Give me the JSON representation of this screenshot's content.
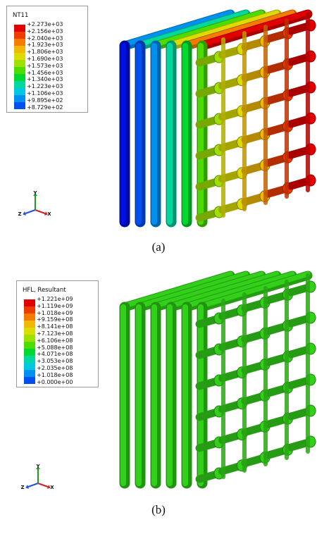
{
  "panel_a": {
    "legend": {
      "title": "NT11",
      "labels": [
        "+2.273e+03",
        "+2.156e+03",
        "+2.040e+03",
        "+1.923e+03",
        "+1.806e+03",
        "+1.690e+03",
        "+1.573e+03",
        "+1.456e+03",
        "+1.340e+03",
        "+1.223e+03",
        "+1.106e+03",
        "+9.895e+02",
        "+8.729e+02"
      ],
      "colors": [
        "#e00000",
        "#ee3c00",
        "#f57c00",
        "#f0b800",
        "#dcdc00",
        "#9ee000",
        "#4cdc00",
        "#00d830",
        "#00d8a0",
        "#00c8e0",
        "#0090f0",
        "#0050f0",
        "#0010e0"
      ]
    },
    "triad": {
      "y": "Y",
      "z": "Z",
      "x": "X"
    },
    "caption": "(a)"
  },
  "panel_b": {
    "legend": {
      "title": "HFL, Resultant",
      "labels": [
        "+1.221e+09",
        "+1.119e+09",
        "+1.018e+09",
        "+9.159e+08",
        "+8.141e+08",
        "+7.123e+08",
        "+6.106e+08",
        "+5.088e+08",
        "+4.071e+08",
        "+3.053e+08",
        "+2.035e+08",
        "+1.018e+08",
        "+0.000e+00"
      ],
      "colors": [
        "#e00000",
        "#ee3c00",
        "#f57c00",
        "#f0b800",
        "#dcdc00",
        "#9ee000",
        "#4cdc00",
        "#00d830",
        "#00d8a0",
        "#00c8e0",
        "#0090f0",
        "#0050f0",
        "#0010e0"
      ]
    },
    "triad": {
      "y": "Y",
      "z": "Z",
      "x": "X"
    },
    "caption": "(b)"
  }
}
